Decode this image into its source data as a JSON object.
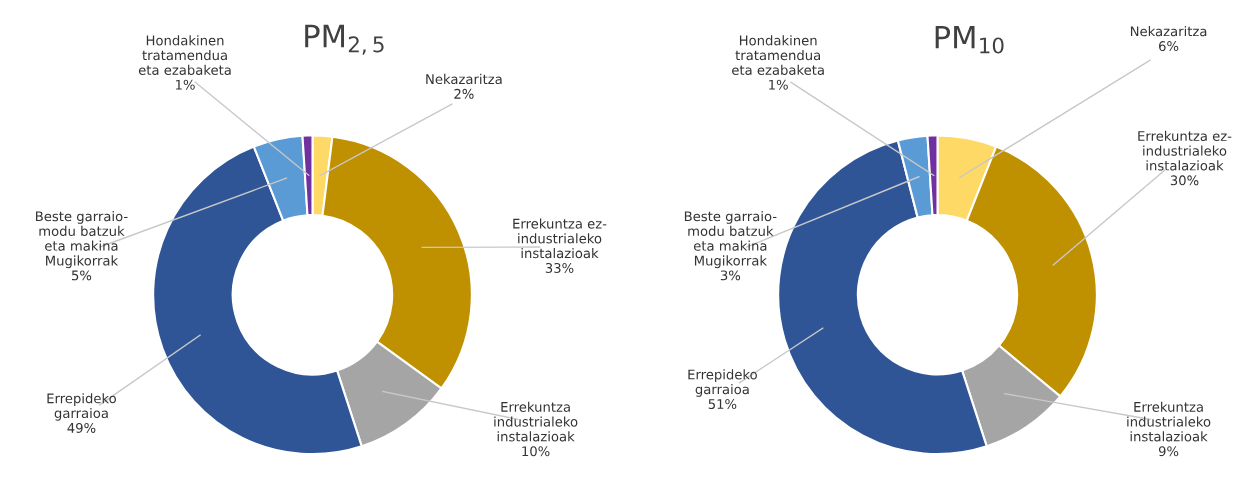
{
  "chart_data": [
    {
      "type": "donut",
      "title": "PM$_{2,5}$",
      "categories": [
        "Nekazaritza",
        "Errekuntza ez-\nindustrialeko\ninstalazioak",
        "Errekuntza\nindustrialeko\ninstalazioak",
        "Errepideko\ngarraioa",
        "Beste garraio-\nmodu batzuk\neta makina\nMugikorrak",
        "Hondakinen\ntratamendua\neta ezabaketa"
      ],
      "values": [
        2,
        33,
        10,
        49,
        5,
        1
      ],
      "value_labels": [
        "2%",
        "33%",
        "10%",
        "49%",
        "5%",
        "1%"
      ],
      "colors": [
        "#ffd966",
        "#bf9000",
        "#a5a5a5",
        "#2f5597",
        "#5b9bd5",
        "#7030a0"
      ]
    },
    {
      "type": "donut",
      "title": "PM$_{10}$",
      "categories": [
        "Nekazaritza",
        "Errekuntza ez-\nindustrialeko\ninstalazioak",
        "Errekuntza\nindustrialeko\ninstalazioak",
        "Errepideko\ngarraioa",
        "Beste garraio-\nmodu batzuk\neta makina\nMugikorrak",
        "Hondakinen\ntratamendua\neta ezabaketa"
      ],
      "values": [
        6,
        30,
        9,
        51,
        3,
        1
      ],
      "value_labels": [
        "6%",
        "30%",
        "9%",
        "51%",
        "3%",
        "1%"
      ],
      "colors": [
        "#ffd966",
        "#bf9000",
        "#a5a5a5",
        "#2f5597",
        "#5b9bd5",
        "#7030a0"
      ]
    }
  ]
}
